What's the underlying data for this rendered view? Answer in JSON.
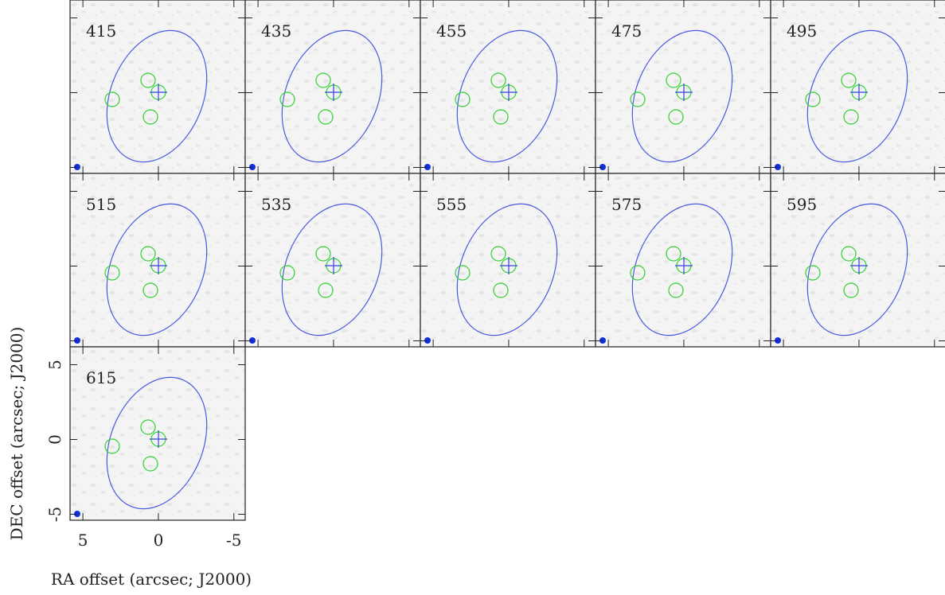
{
  "chart_data": {
    "type": "channel-map",
    "xlabel": "RA offset (arcsec; J2000)",
    "ylabel": "DEC offset (arcsec; J2000)",
    "panels": [
      "415",
      "435",
      "455",
      "475",
      "495",
      "515",
      "535",
      "555",
      "575",
      "595",
      "615"
    ],
    "xlim": [
      5.85,
      -5.75
    ],
    "ylim": [
      -5.4,
      6.2
    ],
    "xticks": [
      5,
      0,
      -5
    ],
    "yticks": [
      -5,
      0,
      5
    ]
  }
}
